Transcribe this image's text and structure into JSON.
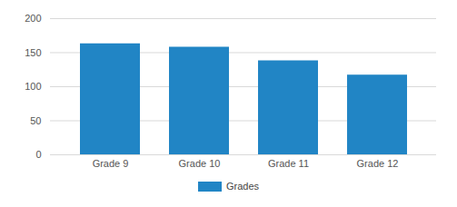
{
  "chart_data": {
    "type": "bar",
    "categories": [
      "Grade 9",
      "Grade 10",
      "Grade 11",
      "Grade 12"
    ],
    "series": [
      {
        "name": "Grades",
        "color": "#2185c5",
        "values": [
          163,
          158,
          138,
          117
        ]
      }
    ],
    "ylim": [
      0,
      200
    ],
    "yticks": [
      0,
      50,
      100,
      150,
      200
    ],
    "grid": true,
    "legend": "bottom"
  }
}
